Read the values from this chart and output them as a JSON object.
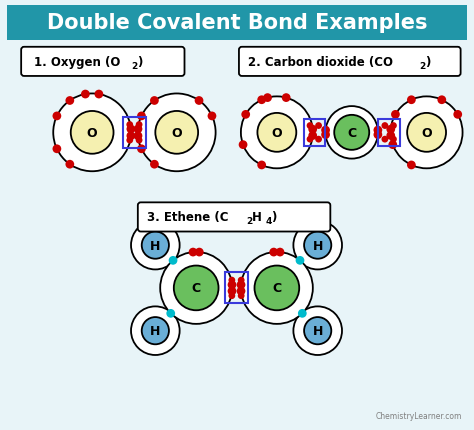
{
  "title": "Double Covalent Bond Examples",
  "title_bg": "#2196a8",
  "title_color": "white",
  "bg_color": "#e8f4f8",
  "color_O_fill": "#f5f0b0",
  "color_C_fill": "#6abf5e",
  "color_H_fill": "#6aaed6",
  "color_bond_rect": "#3a3adc",
  "color_electron_red": "#cc0000",
  "color_electron_cyan": "#00bbcc",
  "watermark": "ChemistryLearner.com",
  "o2_label": "1. Oxygen (O",
  "o2_sub": "2",
  "o2_end": ")",
  "co2_label": "2. Carbon dioxide (CO",
  "co2_sub": "2",
  "co2_end": ")",
  "eth_label": "3. Ethene (C",
  "eth_sub1": "2",
  "eth_mid": "H",
  "eth_sub2": "4",
  "eth_end": ")"
}
